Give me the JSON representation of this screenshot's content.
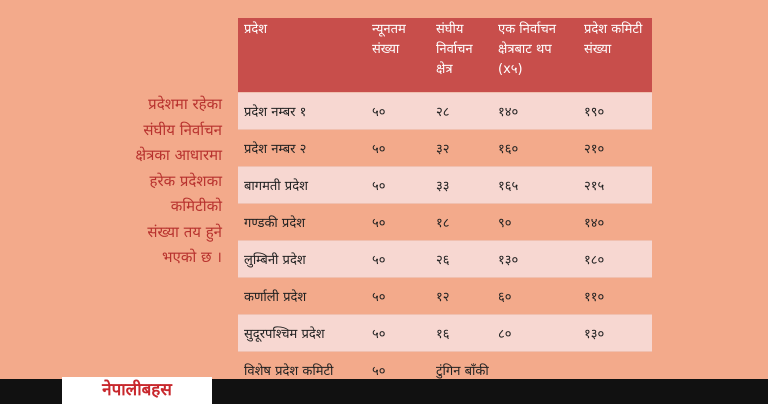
{
  "side_text": [
    "प्रदेशमा रहेका",
    "संघीय निर्वाचन",
    "क्षेत्रका आधारमा",
    "हरेक प्रदेशका",
    "कमिटीको",
    "संख्या तय हुने",
    "भएको छ ।"
  ],
  "table": {
    "header": [
      "प्रदेश",
      "न्यूनतम संख्या",
      "संघीय निर्वाचन क्षेत्र",
      "एक निर्वाचन क्षेत्रबाट थप (x५)",
      "प्रदेश कमिटी संख्या"
    ],
    "rows": [
      [
        "प्रदेश नम्बर १",
        "५०",
        "२८",
        "१४०",
        "१९०"
      ],
      [
        "प्रदेश नम्बर २",
        "५०",
        "३२",
        "१६०",
        "२१०"
      ],
      [
        "बागमती प्रदेश",
        "५०",
        "३३",
        "१६५",
        "२१५"
      ],
      [
        "गण्डकी प्रदेश",
        "५०",
        "१८",
        "९०",
        "१४०"
      ],
      [
        "लुम्बिनी प्रदेश",
        "५०",
        "२६",
        "१३०",
        "१८०"
      ],
      [
        "कर्णाली प्रदेश",
        "५०",
        "१२",
        "६०",
        "११०"
      ],
      [
        "सुदूरपश्चिम प्रदेश",
        "५०",
        "१६",
        "८०",
        "१३०"
      ],
      [
        "विशेष प्रदेश कमिटी",
        "५०",
        "टुंगिन बाँकी"
      ]
    ]
  },
  "logo": "नेपालीबहस"
}
